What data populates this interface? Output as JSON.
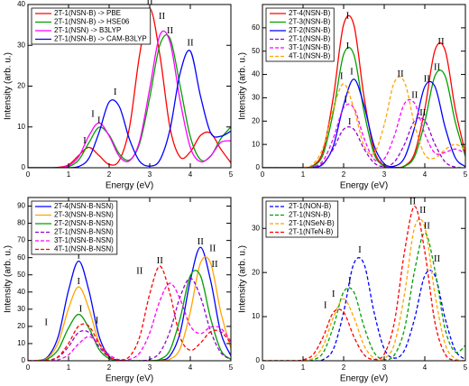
{
  "chart_data": [
    {
      "type": "line",
      "xlabel": "Energy (eV)",
      "ylabel": "Intensity (arb. u.)",
      "xlim": [
        0,
        5
      ],
      "xticks": [
        0,
        1,
        2,
        3,
        4,
        5
      ],
      "ylim": [
        0,
        40
      ],
      "yticks": [
        0,
        10,
        20,
        30,
        40
      ],
      "legend": "upper left",
      "x": [
        0,
        0.25,
        0.5,
        0.75,
        1,
        1.25,
        1.5,
        1.75,
        2,
        2.25,
        2.5,
        2.75,
        3,
        3.25,
        3.5,
        3.75,
        4,
        4.25,
        4.5,
        4.75,
        5
      ],
      "series": [
        {
          "name": "2T-1(NSN-B) -> PBE",
          "color": "#ff0000",
          "linestyle": "solid",
          "values": [
            0,
            0,
            0,
            0.1,
            0.7,
            3.0,
            5.0,
            3.0,
            0.8,
            1.8,
            9.8,
            27.6,
            39,
            27.6,
            9.8,
            2.6,
            3.9,
            7.9,
            8.5,
            4.6,
            1.2
          ]
        },
        {
          "name": "2T-1(NSN-B) -> HSE06",
          "color": "#00a000",
          "linestyle": "solid",
          "values": [
            0,
            0,
            0,
            0,
            0.3,
            1.9,
            6.1,
            9.9,
            8.0,
            3.4,
            1.9,
            5.9,
            17.2,
            30.1,
            31.7,
            20.0,
            7.6,
            2.0,
            2.8,
            7.1,
            10
          ]
        },
        {
          "name": "2T-1(NSN) -> B3LYP",
          "color": "#ff00ff",
          "linestyle": "solid",
          "values": [
            0,
            0,
            0,
            0,
            0.5,
            2.7,
            7.8,
            11,
            7.8,
            2.8,
            1.7,
            6.5,
            19.4,
            32.5,
            30.8,
            16.4,
            5.0,
            1.5,
            2.9,
            6.2,
            6.6
          ]
        },
        {
          "name": "2T-1(NSN-B) -> CAM-B3LYP",
          "color": "#0000ff",
          "linestyle": "solid",
          "values": [
            0,
            0,
            0,
            0,
            0,
            0.3,
            2.3,
            8.6,
            16.1,
            15.0,
            7.0,
            1.6,
            0.4,
            1.9,
            9.4,
            23.2,
            28.6,
            17.6,
            8.6,
            7.7,
            9
          ]
        }
      ],
      "annotations": [
        {
          "text": "I",
          "x": 1.4,
          "y": 6.5,
          "color": "#ff0000"
        },
        {
          "text": "II",
          "x": 3.0,
          "y": 40.5,
          "color": "#ff0000"
        },
        {
          "text": "I",
          "x": 1.75,
          "y": 11.5,
          "color": "#00a000"
        },
        {
          "text": "II",
          "x": 3.5,
          "y": 33.5,
          "color": "#00a000"
        },
        {
          "text": "I",
          "x": 1.6,
          "y": 13,
          "color": "#ff00ff"
        },
        {
          "text": "II",
          "x": 3.3,
          "y": 37,
          "color": "#ff00ff"
        },
        {
          "text": "I",
          "x": 2.15,
          "y": 18.5,
          "color": "#0000ff"
        },
        {
          "text": "II",
          "x": 4.0,
          "y": 30.5,
          "color": "#0000ff"
        }
      ]
    },
    {
      "type": "line",
      "xlabel": "Energy (eV)",
      "ylabel": "Intensity (arb. u.)",
      "xlim": [
        0,
        5
      ],
      "xticks": [
        0,
        1,
        2,
        3,
        4,
        5
      ],
      "ylim": [
        0,
        70
      ],
      "yticks": [
        0,
        10,
        20,
        30,
        40,
        50,
        60
      ],
      "legend": "upper left",
      "x": [
        0,
        0.25,
        0.5,
        0.75,
        1,
        1.25,
        1.5,
        1.75,
        2,
        2.25,
        2.5,
        2.75,
        3,
        3.25,
        3.5,
        3.75,
        4,
        4.25,
        4.5,
        4.75,
        5
      ],
      "series": [
        {
          "name": "2T-4(NSN-B)",
          "color": "#ff0000",
          "linestyle": "solid",
          "values": [
            0,
            0,
            0,
            0,
            0.1,
            0.9,
            7.6,
            30.7,
            61.4,
            61.4,
            30.7,
            7.6,
            0.9,
            0.2,
            0.8,
            6.3,
            25.2,
            50.4,
            50.4,
            25.2,
            6.3
          ]
        },
        {
          "name": "2T-3(NSN-B)",
          "color": "#00a000",
          "linestyle": "solid",
          "values": [
            0,
            0,
            0,
            0,
            0,
            0.7,
            6.0,
            24.3,
            48.6,
            48.6,
            24.3,
            6.0,
            0.7,
            0.1,
            0.6,
            4.9,
            19.7,
            39.4,
            39.4,
            19.7,
            4.9
          ]
        },
        {
          "name": "2T-2(NSN-B)",
          "color": "#0000ff",
          "linestyle": "solid",
          "values": [
            0,
            0,
            0,
            0,
            0,
            0.2,
            1.7,
            9.5,
            26.9,
            38,
            26.9,
            9.5,
            1.7,
            0.7,
            4.3,
            17.4,
            34.8,
            34.8,
            17.4,
            4.3,
            0.5
          ]
        },
        {
          "name": "2T-1(NSN-B)",
          "color": "#9400d3",
          "linestyle": "dashed",
          "values": [
            0,
            0,
            0,
            0,
            0,
            0.3,
            2.1,
            8.2,
            16.5,
            16.5,
            8.2,
            2.1,
            0.6,
            2.5,
            10.1,
            20.2,
            20.2,
            10.1,
            2.5,
            0.3,
            0
          ]
        },
        {
          "name": "3T-1(NSN-B)",
          "color": "#ff00ff",
          "linestyle": "dashed",
          "values": [
            0,
            0,
            0,
            0,
            0,
            0.4,
            3.2,
            12.8,
            25.7,
            25.7,
            12.8,
            3.6,
            3.8,
            13.7,
            27.5,
            27.6,
            14.5,
            6.3,
            6.6,
            8.0,
            6.2
          ]
        },
        {
          "name": "4T-1(NSN-B)",
          "color": "#ffa500",
          "linestyle": "dashed",
          "values": [
            0,
            0,
            0,
            0,
            0.1,
            1.6,
            9.0,
            25.5,
            36,
            25.5,
            9.6,
            6.2,
            18.4,
            36.7,
            36.7,
            18.3,
            5.6,
            4.2,
            7.8,
            10,
            7.8
          ]
        }
      ],
      "annotations": [
        {
          "text": "I",
          "x": 2.1,
          "y": 65,
          "color": "#ff0000"
        },
        {
          "text": "II",
          "x": 4.4,
          "y": 54,
          "color": "#ff0000"
        },
        {
          "text": "I",
          "x": 2.1,
          "y": 52,
          "color": "#00a000"
        },
        {
          "text": "II",
          "x": 4.3,
          "y": 43,
          "color": "#00a000"
        },
        {
          "text": "I",
          "x": 2.2,
          "y": 41,
          "color": "#0000ff"
        },
        {
          "text": "II",
          "x": 4.05,
          "y": 38,
          "color": "#0000ff"
        },
        {
          "text": "I",
          "x": 1.95,
          "y": 39,
          "color": "#ffa500"
        },
        {
          "text": "II",
          "x": 3.4,
          "y": 40,
          "color": "#ffa500"
        },
        {
          "text": "I",
          "x": 2.05,
          "y": 29,
          "color": "#ff00ff"
        },
        {
          "text": "II",
          "x": 3.75,
          "y": 31,
          "color": "#ff00ff"
        },
        {
          "text": "I",
          "x": 2.15,
          "y": 19.5,
          "color": "#9400d3"
        },
        {
          "text": "II",
          "x": 3.95,
          "y": 23.5,
          "color": "#9400d3"
        }
      ]
    },
    {
      "type": "line",
      "xlabel": "Energy (eV)",
      "ylabel": "Intensity (arb. u.)",
      "xlim": [
        0,
        5
      ],
      "xticks": [
        0,
        1,
        2,
        3,
        4,
        5
      ],
      "ylim": [
        0,
        95
      ],
      "yticks": [
        0,
        10,
        20,
        30,
        40,
        50,
        60,
        70,
        80,
        90
      ],
      "legend": "upper left",
      "x": [
        0,
        0.25,
        0.5,
        0.75,
        1,
        1.25,
        1.5,
        1.75,
        2,
        2.25,
        2.5,
        2.75,
        3,
        3.25,
        3.5,
        3.75,
        4,
        4.25,
        4.5,
        4.75,
        5
      ],
      "series": [
        {
          "name": "2T-4(NSN-B-NSN)",
          "color": "#0000ff",
          "linestyle": "solid",
          "values": [
            0,
            0.2,
            2.6,
            14.4,
            41.0,
            58,
            41.0,
            14.4,
            2.6,
            0.2,
            0,
            0,
            0,
            0.2,
            2.9,
            16.4,
            46.7,
            66,
            46.7,
            16.4,
            2.9
          ]
        },
        {
          "name": "2T-3(NSN-B-NSN)",
          "color": "#ffa500",
          "linestyle": "solid",
          "values": [
            0,
            0.2,
            1.9,
            10.7,
            30.4,
            43,
            30.4,
            10.7,
            1.9,
            0.2,
            0,
            0,
            0,
            0.1,
            0.9,
            7.1,
            28.4,
            56.9,
            56.9,
            28.4,
            7.1
          ]
        },
        {
          "name": "2T-2(NSN-B-NSN)",
          "color": "#00a000",
          "linestyle": "solid",
          "values": [
            0,
            0,
            1.2,
            6.7,
            19.1,
            27,
            19.1,
            6.7,
            1.2,
            0.1,
            0,
            0,
            0,
            0.8,
            6.2,
            24.7,
            49.5,
            49.5,
            24.7,
            6.2,
            0.8
          ]
        },
        {
          "name": "2T-1(NSN-B-NSN)",
          "color": "#9400d3",
          "linestyle": "dashed",
          "values": [
            0,
            0,
            0.3,
            2.1,
            8.2,
            16.5,
            16.5,
            8.2,
            2.1,
            0.3,
            0,
            0,
            0.8,
            4.8,
            17.3,
            37.2,
            48,
            37.2,
            17.3,
            4.8,
            0.8
          ]
        },
        {
          "name": "3T-1(NSN-B-NSN)",
          "color": "#ff00ff",
          "linestyle": "dashed",
          "values": [
            0,
            0,
            0,
            0.6,
            3.5,
            9.9,
            14,
            9.9,
            3.5,
            0.6,
            0.8,
            4.5,
            16.2,
            34.9,
            45.1,
            35.8,
            20.3,
            15.8,
            19.6,
            18.9,
            11.3
          ]
        },
        {
          "name": "4T-1(NSN-B-NSN)",
          "color": "#ff0000",
          "linestyle": "dashed",
          "values": [
            0,
            0,
            0.3,
            2.5,
            10.1,
            20.2,
            20.2,
            10.1,
            2.5,
            0.5,
            2.4,
            13.7,
            38.9,
            55,
            38.9,
            13.7,
            6.1,
            10.3,
            16.9,
            16.9,
            10.1
          ]
        }
      ],
      "annotations": [
        {
          "text": "I",
          "x": 1.25,
          "y": 61,
          "color": "#0000ff"
        },
        {
          "text": "II",
          "x": 4.25,
          "y": 69,
          "color": "#0000ff"
        },
        {
          "text": "I",
          "x": 1.25,
          "y": 46,
          "color": "#ffa500"
        },
        {
          "text": "II",
          "x": 4.55,
          "y": 65,
          "color": "#ffa500"
        },
        {
          "text": "I",
          "x": 1.3,
          "y": 30,
          "color": "#00a000"
        },
        {
          "text": "II",
          "x": 4.6,
          "y": 56,
          "color": "#00a000"
        },
        {
          "text": "I",
          "x": 1.7,
          "y": 23,
          "color": "#9400d3"
        },
        {
          "text": "II",
          "x": 2.75,
          "y": 52,
          "color": "#ff00ff"
        },
        {
          "text": "II",
          "x": 3.25,
          "y": 58,
          "color": "#ff0000"
        },
        {
          "text": "I",
          "x": 0.45,
          "y": 22,
          "color": "#ff0000"
        }
      ]
    },
    {
      "type": "line",
      "xlabel": "Energy (eV)",
      "ylabel": "Intensity (arb. u.)",
      "xlim": [
        0,
        5
      ],
      "xticks": [
        0,
        1,
        2,
        3,
        4,
        5
      ],
      "ylim": [
        0,
        37
      ],
      "yticks": [
        0,
        10,
        20,
        30
      ],
      "legend": "upper left",
      "x": [
        0,
        0.25,
        0.5,
        0.75,
        1,
        1.25,
        1.5,
        1.75,
        2,
        2.25,
        2.5,
        2.75,
        3,
        3.25,
        3.5,
        3.75,
        4,
        4.25,
        4.5,
        4.75,
        5
      ],
      "series": [
        {
          "name": "2T-1(NON-B)",
          "color": "#0000ff",
          "linestyle": "dashed",
          "values": [
            0,
            0,
            0,
            0,
            0,
            0,
            0.3,
            2.7,
            11.0,
            22.0,
            22.0,
            11.0,
            2.7,
            0.6,
            2.4,
            9.6,
            19.3,
            19.3,
            9.6,
            2.4,
            0.3
          ]
        },
        {
          "name": "2T-1(NSN-B)",
          "color": "#00a000",
          "linestyle": "dashed",
          "values": [
            0,
            0,
            0,
            0,
            0,
            0.2,
            1.9,
            7.8,
            15.6,
            15.6,
            7.8,
            1.9,
            0.3,
            1.3,
            7.2,
            20.5,
            29,
            20.5,
            7.2,
            2.0,
            3.5
          ]
        },
        {
          "name": "2T-1(NSeN-B)",
          "color": "#ffa500",
          "linestyle": "dashed",
          "values": [
            0,
            0,
            0,
            0,
            0.1,
            0.6,
            3.5,
            9.9,
            14,
            9.9,
            3.5,
            0.6,
            0.5,
            3.8,
            15.1,
            30.3,
            30.3,
            15.1,
            3.8,
            0.5,
            0
          ]
        },
        {
          "name": "2T-1(NTeN-B)",
          "color": "#ff0000",
          "linestyle": "dashed",
          "values": [
            0,
            0,
            0,
            0,
            0.2,
            1.4,
            5.5,
            11.0,
            11.0,
            5.5,
            1.4,
            0.3,
            1.5,
            8.7,
            24.7,
            35,
            24.7,
            8.7,
            1.5,
            0.1,
            0
          ]
        }
      ],
      "annotations": [
        {
          "text": "I",
          "x": 2.4,
          "y": 25,
          "color": "#0000ff"
        },
        {
          "text": "II",
          "x": 4.3,
          "y": 23,
          "color": "#0000ff"
        },
        {
          "text": "I",
          "x": 2.15,
          "y": 18,
          "color": "#00a000"
        },
        {
          "text": "II",
          "x": 4.05,
          "y": 30.5,
          "color": "#00a000"
        },
        {
          "text": "I",
          "x": 1.75,
          "y": 15,
          "color": "#ffa500"
        },
        {
          "text": "II",
          "x": 3.95,
          "y": 34,
          "color": "#ffa500"
        },
        {
          "text": "I",
          "x": 1.55,
          "y": 12.5,
          "color": "#ff0000"
        },
        {
          "text": "II",
          "x": 3.7,
          "y": 36,
          "color": "#ff0000"
        }
      ]
    }
  ]
}
